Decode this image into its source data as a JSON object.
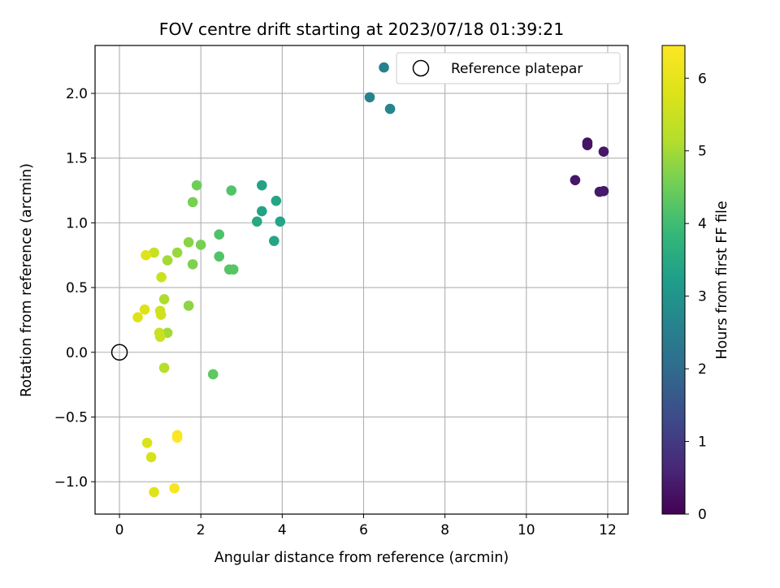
{
  "chart_data": {
    "type": "scatter",
    "title": "FOV centre drift starting at 2023/07/18 01:39:21",
    "xlabel": "Angular distance from reference (arcmin)",
    "ylabel": "Rotation from reference (arcmin)",
    "xlim": [
      -0.6,
      12.5
    ],
    "ylim": [
      -1.25,
      2.37
    ],
    "xticks": [
      0,
      2,
      4,
      6,
      8,
      10,
      12
    ],
    "xtick_labels": [
      "0",
      "2",
      "4",
      "6",
      "8",
      "10",
      "12"
    ],
    "yticks": [
      -1.0,
      -0.5,
      0.0,
      0.5,
      1.0,
      1.5,
      2.0
    ],
    "ytick_labels": [
      "−1.0",
      "−0.5",
      "0.0",
      "0.5",
      "1.0",
      "1.5",
      "2.0"
    ],
    "grid": true,
    "legend": {
      "position": "top-right",
      "entries": [
        "Reference platepar"
      ]
    },
    "reference_point": {
      "name": "Reference platepar",
      "x": 0,
      "y": 0,
      "marker": "open-circle"
    },
    "colorbar": {
      "label": "Hours from first FF file",
      "range": [
        0,
        6.45
      ],
      "ticks": [
        0,
        1,
        2,
        3,
        4,
        5,
        6
      ],
      "tick_labels": [
        "0",
        "1",
        "2",
        "3",
        "4",
        "5",
        "6"
      ],
      "colormap": "viridis"
    },
    "series": [
      {
        "x": [
          11.5,
          11.5,
          11.9,
          11.2,
          11.8,
          11.9,
          6.5,
          6.15,
          6.65,
          3.5,
          3.85,
          3.5,
          3.95,
          3.38,
          3.8,
          2.75,
          2.45,
          2.45,
          2.8,
          2.7,
          1.9,
          1.8,
          2.0,
          1.7,
          1.8,
          1.7,
          2.3,
          1.42,
          1.18,
          1.1,
          1.18,
          1.1,
          0.85,
          1.03,
          1.0,
          1.02,
          0.98,
          1.0,
          0.65,
          0.62,
          0.45,
          0.68,
          0.78,
          0.85,
          1.42,
          1.42,
          1.35
        ],
        "y": [
          1.62,
          1.6,
          1.55,
          1.33,
          1.24,
          1.245,
          2.2,
          1.97,
          1.88,
          1.29,
          1.17,
          1.09,
          1.01,
          1.01,
          0.86,
          1.25,
          0.91,
          0.74,
          0.64,
          0.64,
          1.29,
          1.16,
          0.83,
          0.85,
          0.68,
          0.36,
          -0.17,
          0.77,
          0.71,
          0.41,
          0.15,
          -0.12,
          0.77,
          0.58,
          0.32,
          0.29,
          0.15,
          0.12,
          0.75,
          0.33,
          0.27,
          -0.7,
          -0.81,
          -1.08,
          -0.64,
          -0.66,
          -1.05
        ],
        "hours": [
          0.3,
          0.3,
          0.35,
          0.35,
          0.4,
          0.4,
          2.55,
          2.6,
          2.65,
          3.35,
          3.4,
          3.35,
          3.4,
          3.45,
          3.4,
          4.2,
          4.15,
          4.2,
          4.25,
          4.25,
          4.5,
          4.6,
          4.6,
          4.75,
          4.65,
          4.8,
          4.35,
          4.9,
          5.0,
          5.1,
          5.0,
          5.2,
          5.45,
          5.5,
          5.55,
          5.6,
          5.45,
          5.5,
          5.85,
          5.8,
          5.8,
          5.75,
          5.7,
          5.85,
          6.35,
          6.4,
          6.3
        ]
      }
    ]
  }
}
